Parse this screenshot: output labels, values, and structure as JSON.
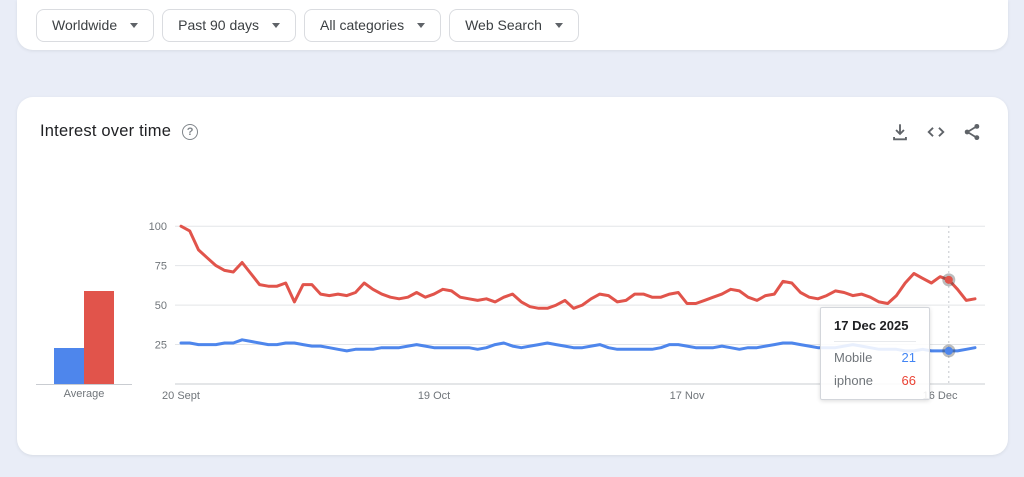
{
  "filters": {
    "items": [
      {
        "label": "Worldwide"
      },
      {
        "label": "Past 90 days"
      },
      {
        "label": "All categories"
      },
      {
        "label": "Web Search"
      }
    ]
  },
  "panel": {
    "title": "Interest over time",
    "toolbar_icons": [
      "download",
      "embed-code",
      "share"
    ]
  },
  "icons": {
    "help": "?",
    "dropdown_caret": "caret-down"
  },
  "colors": {
    "page_bg": "#e9edf7",
    "line_blue": "#4e86ec",
    "line_red": "#e1544b",
    "value_blue": "#4285f4",
    "value_red": "#ea4335",
    "axis_text": "#70757a",
    "gridline": "#e3e5e8",
    "baseline": "#c9ccd1"
  },
  "tooltip": {
    "date": "17 Dec 2025",
    "rows": [
      {
        "label": "Mobile",
        "value": 21,
        "color": "#4285f4"
      },
      {
        "label": "iphone",
        "value": 66,
        "color": "#ea4335"
      }
    ]
  },
  "chart_data": {
    "type": "line",
    "title": "Interest over time",
    "x_unit": "day",
    "xticks": [
      {
        "label": "20 Sept",
        "index": 0
      },
      {
        "label": "19 Oct",
        "index": 29
      },
      {
        "label": "17 Nov",
        "index": 58
      },
      {
        "label": "16 Dec",
        "index": 87
      }
    ],
    "yticks": [
      25,
      50,
      75,
      100
    ],
    "ylim": [
      0,
      100
    ],
    "grid": true,
    "legend_position": "none",
    "average_label": "Average",
    "hover": {
      "index": 88,
      "date": "17 Dec 2025"
    },
    "series": [
      {
        "name": "Mobile",
        "color": "#4e86ec",
        "average": 23,
        "hover_value": 21,
        "values": [
          26,
          26,
          25,
          25,
          25,
          26,
          26,
          28,
          27,
          26,
          25,
          25,
          26,
          26,
          25,
          24,
          24,
          23,
          22,
          21,
          22,
          22,
          22,
          23,
          23,
          23,
          24,
          25,
          24,
          23,
          23,
          23,
          23,
          23,
          22,
          23,
          25,
          26,
          24,
          23,
          24,
          25,
          26,
          25,
          24,
          23,
          23,
          24,
          25,
          23,
          22,
          22,
          22,
          22,
          22,
          23,
          25,
          25,
          24,
          23,
          23,
          23,
          24,
          23,
          22,
          23,
          23,
          24,
          25,
          26,
          26,
          25,
          24,
          23,
          23,
          23,
          24,
          25,
          24,
          23,
          22,
          22,
          22,
          21,
          21,
          22,
          21,
          21,
          21,
          21,
          22,
          23
        ]
      },
      {
        "name": "iphone",
        "color": "#e1544b",
        "average": 59,
        "hover_value": 66,
        "values": [
          100,
          97,
          85,
          80,
          75,
          72,
          71,
          77,
          70,
          63,
          62,
          62,
          64,
          52,
          63,
          63,
          57,
          56,
          57,
          56,
          58,
          64,
          60,
          57,
          55,
          54,
          55,
          58,
          55,
          57,
          60,
          59,
          55,
          54,
          53,
          54,
          52,
          55,
          57,
          52,
          49,
          48,
          48,
          50,
          53,
          48,
          50,
          54,
          57,
          56,
          52,
          53,
          57,
          57,
          55,
          55,
          57,
          58,
          51,
          51,
          53,
          55,
          57,
          60,
          59,
          55,
          53,
          56,
          57,
          65,
          64,
          58,
          55,
          54,
          56,
          59,
          58,
          56,
          57,
          55,
          52,
          51,
          56,
          64,
          70,
          67,
          64,
          68,
          66,
          60,
          53,
          54
        ]
      }
    ]
  }
}
